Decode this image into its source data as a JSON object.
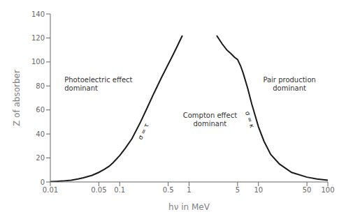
{
  "chart_data": {
    "type": "line",
    "xlabel": "hν in MeV",
    "ylabel": "Z of absorber",
    "log": "x",
    "xlim": [
      0.01,
      100
    ],
    "xticks": [
      0.01,
      0.05,
      0.1,
      0.5,
      1,
      5,
      10,
      50,
      100
    ],
    "ylim": [
      0,
      140
    ],
    "yticks": [
      0,
      20,
      40,
      60,
      80,
      100,
      120,
      140
    ],
    "grid": false,
    "series": [
      {
        "color": "#1a1a1a",
        "x": [
          0.01,
          0.012,
          0.015,
          0.02,
          0.025,
          0.03,
          0.04,
          0.05,
          0.06,
          0.07,
          0.08,
          0.1,
          0.12,
          0.15,
          0.2,
          0.25,
          0.3,
          0.35,
          0.4,
          0.5,
          0.6,
          0.7,
          0.8
        ],
        "values": [
          0.3,
          0.5,
          0.8,
          1.5,
          2.5,
          3.5,
          5.5,
          8.0,
          10.5,
          13.0,
          16.0,
          22,
          28,
          36,
          50,
          62,
          72,
          80,
          87,
          98,
          107,
          115,
          122
        ]
      },
      {
        "color": "#1a1a1a",
        "x": [
          2.5,
          3.0,
          3.5,
          4.0,
          4.5,
          5.0,
          5.5,
          6.0,
          7.0,
          8.0,
          10,
          12,
          15,
          20,
          30,
          50,
          70,
          100
        ],
        "values": [
          122,
          115,
          110,
          107,
          104,
          102,
          97,
          91,
          78,
          65,
          46,
          34,
          23,
          15,
          8,
          4,
          2.5,
          1.5
        ]
      }
    ],
    "annotations": [
      {
        "text": "Photoelectric effect\ndominant",
        "x": 0.016,
        "y": 82
      },
      {
        "text": "Compton effect\ndominant",
        "x": 2.0,
        "y": 52
      },
      {
        "text": "Pair production\ndominant",
        "x": 28,
        "y": 82
      },
      {
        "text": "σ = τ",
        "x": 0.22,
        "y": 42,
        "color": "#1a1a1a"
      },
      {
        "text": "σ = κ",
        "x": 7.5,
        "y": 52,
        "color": "#1a1a1a"
      }
    ]
  }
}
